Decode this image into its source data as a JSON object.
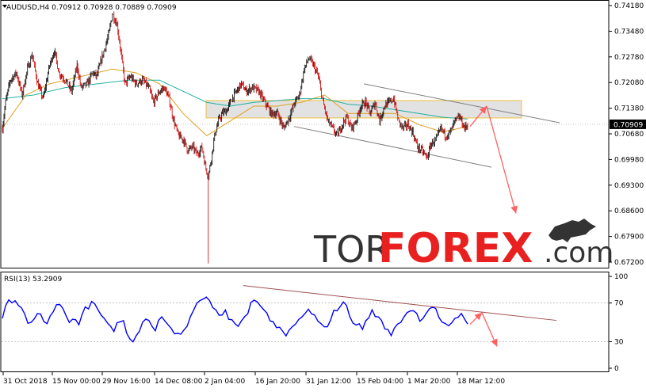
{
  "header": {
    "symbol_line": "AUDUSD,H4  0.70912 0.70928 0.70889 0.70909",
    "rsi_line": "RSI(13) 53.2909"
  },
  "watermark": {
    "part1": "TOR",
    "part2": "FOREX",
    "part3": ".com"
  },
  "colors": {
    "bull": "#000000",
    "bear": "#cc0000",
    "ma_fast": "#e0a020",
    "ma_slow": "#20b0a0",
    "rsi": "#0000ff",
    "arrow": "#ff6060",
    "channel": "#808080",
    "rsi_trend": "#a05050",
    "band_fill": "#d8d8d8",
    "band_stroke": "#f0c040",
    "watermark_dark": "#333333",
    "watermark_red": "#e82020"
  },
  "chart_data": [
    {
      "type": "candlestick",
      "title": "AUDUSD,H4",
      "ohlc_header": {
        "open": 0.70912,
        "high": 0.70928,
        "low": 0.70889,
        "close": 0.70909
      },
      "last_price_label": "0.70909",
      "ylim": [
        0.671,
        0.7418
      ],
      "y_ticks": [
        "0.74180",
        "0.73480",
        "0.72780",
        "0.72080",
        "0.71380",
        "0.70680",
        "0.69980",
        "0.69300",
        "0.68600",
        "0.67900",
        "0.67200"
      ],
      "x_ticks": [
        "31 Oct 2018",
        "15 Nov 00:00",
        "29 Nov 16:00",
        "14 Dec 08:00",
        "2 Jan 04:00",
        "16 Jan 20:00",
        "31 Jan 12:00",
        "15 Feb 04:00",
        "1 Mar 20:00",
        "18 Mar 12:00"
      ],
      "price_path": [
        [
          0,
          0.708
        ],
        [
          4,
          0.715
        ],
        [
          10,
          0.721
        ],
        [
          18,
          0.723
        ],
        [
          25,
          0.717
        ],
        [
          32,
          0.724
        ],
        [
          38,
          0.728
        ],
        [
          45,
          0.72
        ],
        [
          52,
          0.716
        ],
        [
          60,
          0.725
        ],
        [
          66,
          0.729
        ],
        [
          72,
          0.723
        ],
        [
          80,
          0.721
        ],
        [
          88,
          0.718
        ],
        [
          95,
          0.725
        ],
        [
          100,
          0.719
        ],
        [
          108,
          0.72
        ],
        [
          115,
          0.723
        ],
        [
          120,
          0.722
        ],
        [
          128,
          0.728
        ],
        [
          135,
          0.733
        ],
        [
          140,
          0.739
        ],
        [
          146,
          0.736
        ],
        [
          150,
          0.73
        ],
        [
          156,
          0.72
        ],
        [
          163,
          0.722
        ],
        [
          170,
          0.72
        ],
        [
          178,
          0.721
        ],
        [
          186,
          0.719
        ],
        [
          192,
          0.715
        ],
        [
          200,
          0.718
        ],
        [
          206,
          0.719
        ],
        [
          212,
          0.716
        ],
        [
          218,
          0.71
        ],
        [
          224,
          0.706
        ],
        [
          230,
          0.705
        ],
        [
          236,
          0.702
        ],
        [
          242,
          0.703
        ],
        [
          248,
          0.701
        ],
        [
          254,
          0.703
        ],
        [
          258,
          0.698
        ],
        [
          262,
          0.695
        ],
        [
          266,
          0.7
        ],
        [
          270,
          0.706
        ],
        [
          275,
          0.71
        ],
        [
          280,
          0.712
        ],
        [
          286,
          0.713
        ],
        [
          292,
          0.716
        ],
        [
          298,
          0.718
        ],
        [
          304,
          0.72
        ],
        [
          310,
          0.718
        ],
        [
          318,
          0.719
        ],
        [
          326,
          0.718
        ],
        [
          334,
          0.715
        ],
        [
          342,
          0.712
        ],
        [
          350,
          0.712
        ],
        [
          358,
          0.708
        ],
        [
          365,
          0.711
        ],
        [
          372,
          0.715
        ],
        [
          378,
          0.717
        ],
        [
          384,
          0.724
        ],
        [
          390,
          0.727
        ],
        [
          396,
          0.725
        ],
        [
          402,
          0.722
        ],
        [
          408,
          0.715
        ],
        [
          414,
          0.71
        ],
        [
          420,
          0.708
        ],
        [
          426,
          0.706
        ],
        [
          432,
          0.709
        ],
        [
          438,
          0.711
        ],
        [
          444,
          0.708
        ],
        [
          450,
          0.71
        ],
        [
          456,
          0.714
        ],
        [
          462,
          0.715
        ],
        [
          468,
          0.712
        ],
        [
          474,
          0.715
        ],
        [
          480,
          0.71
        ],
        [
          486,
          0.714
        ],
        [
          492,
          0.715
        ],
        [
          498,
          0.716
        ],
        [
          504,
          0.71
        ],
        [
          510,
          0.708
        ],
        [
          516,
          0.709
        ],
        [
          522,
          0.707
        ],
        [
          528,
          0.703
        ],
        [
          534,
          0.702
        ],
        [
          540,
          0.7
        ],
        [
          546,
          0.704
        ],
        [
          552,
          0.705
        ],
        [
          558,
          0.708
        ],
        [
          564,
          0.706
        ],
        [
          570,
          0.707
        ],
        [
          576,
          0.71
        ],
        [
          582,
          0.711
        ],
        [
          588,
          0.708
        ],
        [
          592,
          0.709
        ]
      ],
      "spike_low": {
        "index": 262,
        "value": 0.6715
      },
      "ma_fast_path": [
        [
          0,
          0.708
        ],
        [
          30,
          0.717
        ],
        [
          60,
          0.72
        ],
        [
          100,
          0.722
        ],
        [
          140,
          0.724
        ],
        [
          170,
          0.723
        ],
        [
          200,
          0.72
        ],
        [
          230,
          0.712
        ],
        [
          260,
          0.706
        ],
        [
          290,
          0.71
        ],
        [
          320,
          0.714
        ],
        [
          350,
          0.714
        ],
        [
          380,
          0.715
        ],
        [
          410,
          0.717
        ],
        [
          440,
          0.712
        ],
        [
          470,
          0.712
        ],
        [
          500,
          0.712
        ],
        [
          530,
          0.709
        ],
        [
          560,
          0.707
        ],
        [
          592,
          0.7085
        ]
      ],
      "ma_slow_path": [
        [
          0,
          0.716
        ],
        [
          40,
          0.717
        ],
        [
          80,
          0.719
        ],
        [
          120,
          0.72
        ],
        [
          160,
          0.721
        ],
        [
          200,
          0.721
        ],
        [
          230,
          0.718
        ],
        [
          260,
          0.715
        ],
        [
          290,
          0.714
        ],
        [
          320,
          0.715
        ],
        [
          350,
          0.7155
        ],
        [
          380,
          0.716
        ],
        [
          410,
          0.716
        ],
        [
          440,
          0.7145
        ],
        [
          470,
          0.714
        ],
        [
          500,
          0.713
        ],
        [
          530,
          0.712
        ],
        [
          560,
          0.711
        ],
        [
          592,
          0.7105
        ]
      ]
    },
    {
      "type": "line",
      "title": "RSI(13) 53.2909",
      "ylim": [
        0,
        100
      ],
      "y_ticks": [
        "100",
        "70",
        "30",
        "0"
      ],
      "levels": [
        70,
        30
      ],
      "values": [
        55,
        65,
        72,
        68,
        75,
        70,
        66,
        60,
        52,
        48,
        55,
        62,
        58,
        50,
        46,
        55,
        60,
        70,
        68,
        62,
        54,
        50,
        56,
        52,
        48,
        58,
        66,
        64,
        70,
        72,
        65,
        60,
        55,
        50,
        46,
        42,
        48,
        52,
        50,
        40,
        34,
        30,
        36,
        42,
        48,
        52,
        50,
        46,
        44,
        50,
        54,
        52,
        48,
        44,
        40,
        36,
        38,
        42,
        48,
        54,
        60,
        70,
        74,
        72,
        76,
        70,
        65,
        60,
        55,
        58,
        62,
        56,
        52,
        48,
        45,
        50,
        54,
        60,
        70,
        72,
        74,
        68,
        62,
        58,
        54,
        50,
        46,
        42,
        38,
        36,
        40,
        44,
        48,
        52,
        56,
        58,
        62,
        60,
        56,
        50,
        46,
        44,
        48,
        54,
        60,
        64,
        68,
        70,
        65,
        58,
        52,
        48,
        46,
        44,
        50,
        56,
        62,
        58,
        54,
        50,
        46,
        40,
        38,
        42,
        48,
        52,
        56,
        60,
        64,
        62,
        58,
        54,
        56,
        60,
        64,
        68,
        62,
        56,
        50,
        46,
        44,
        48,
        52,
        56,
        60,
        54,
        50
      ]
    }
  ]
}
